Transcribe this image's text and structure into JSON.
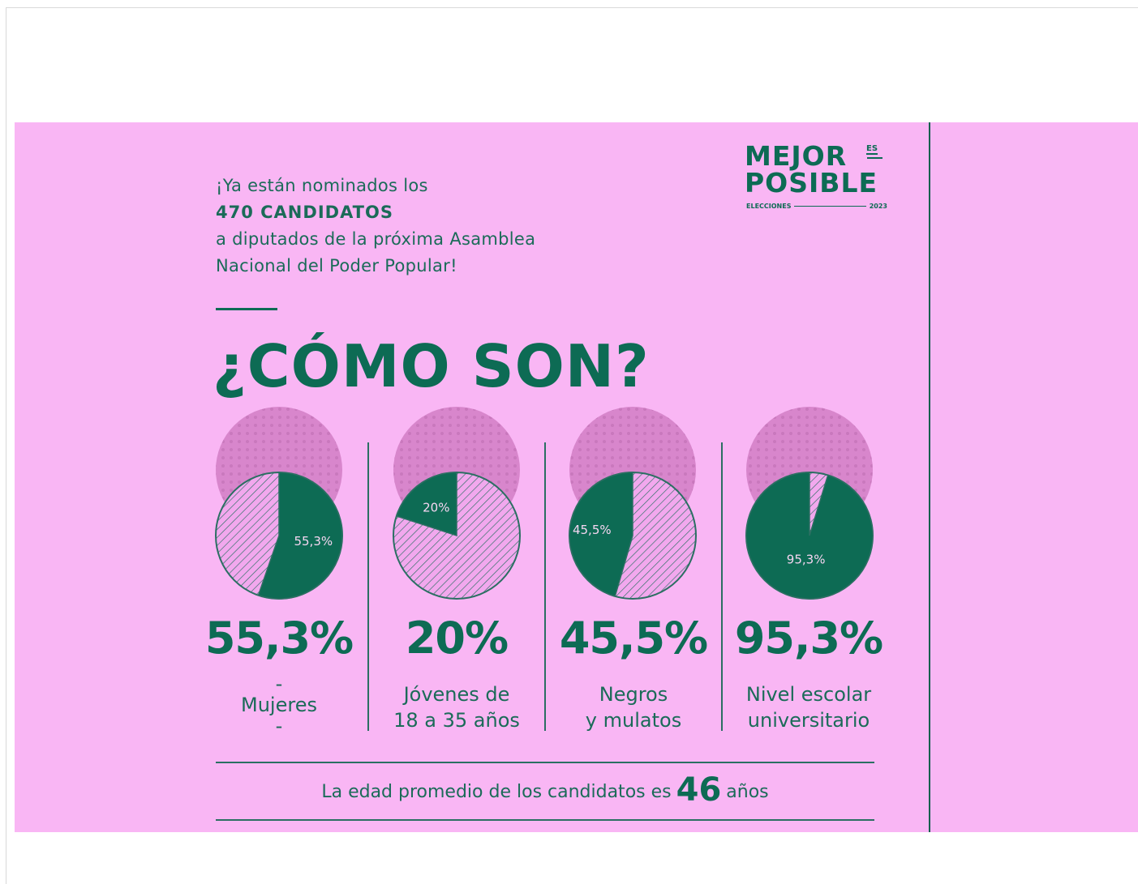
{
  "colors": {
    "background": "#f9b6f4",
    "accent": "#0d6b54"
  },
  "intro": {
    "line1": "¡Ya están nominados los",
    "line2": "470 CANDIDATOS",
    "line3": "a diputados de la próxima Asamblea",
    "line4": "Nacional del Poder Popular!"
  },
  "headline": "¿CÓMO SON?",
  "logo": {
    "line1": "MEJOR",
    "line1_suffix": "ES",
    "line2": "POSIBLE",
    "sub_left": "ELECCIONES",
    "sub_right": "2023"
  },
  "chart_data": [
    {
      "type": "pie",
      "value_label": "55,3%",
      "percent": 55.3,
      "big": "55,3%",
      "label_lines": [
        "-",
        "Mujeres",
        "-"
      ]
    },
    {
      "type": "pie",
      "value_label": "20%",
      "percent": 20,
      "big": "20%",
      "label_lines": [
        "Jóvenes de",
        "18 a 35 años"
      ]
    },
    {
      "type": "pie",
      "value_label": "45,5%",
      "percent": 45.5,
      "big": "45,5%",
      "label_lines": [
        "Negros",
        "y mulatos"
      ]
    },
    {
      "type": "pie",
      "value_label": "95,3%",
      "percent": 95.3,
      "big": "95,3%",
      "label_lines": [
        "Nivel escolar",
        "universitario"
      ]
    }
  ],
  "footer": {
    "before": "La edad promedio de los candidatos es",
    "number": "46",
    "after": "años"
  }
}
